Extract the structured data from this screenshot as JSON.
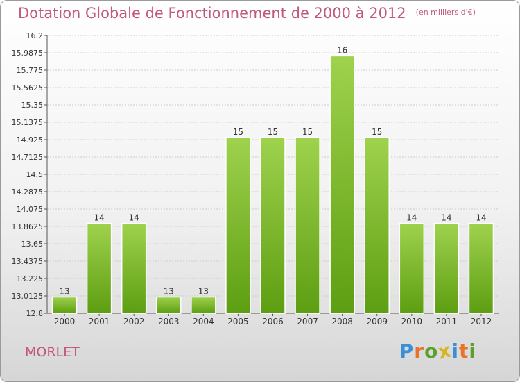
{
  "colors": {
    "title": "#c05a78",
    "bar_top": "#9fd24d",
    "bar_bottom": "#5d9e12",
    "axis_text": "#333333",
    "gridline": "#cccccc"
  },
  "header": {
    "title": "Dotation Globale de Fonctionnement de 2000 à 2012",
    "unit": "(en milliers d'€)"
  },
  "footer": {
    "commune": "MORLET",
    "brand": [
      "P",
      "r",
      "o",
      "x",
      "i",
      "t",
      "i"
    ],
    "brand_colors": [
      "#3a8fd6",
      "#e8742a",
      "#5aa02c",
      "#d9b321",
      "#3a8fd6",
      "#e8742a",
      "#5aa02c"
    ]
  },
  "chart_data": {
    "type": "bar",
    "categories": [
      "2000",
      "2001",
      "2002",
      "2003",
      "2004",
      "2005",
      "2006",
      "2007",
      "2008",
      "2009",
      "2010",
      "2011",
      "2012"
    ],
    "values": [
      13.0,
      13.9,
      13.9,
      13.0,
      13.0,
      14.95,
      14.95,
      14.95,
      15.95,
      14.95,
      13.9,
      13.9,
      13.9
    ],
    "data_labels": [
      "13",
      "14",
      "14",
      "13",
      "13",
      "15",
      "15",
      "15",
      "16",
      "15",
      "14",
      "14",
      "14"
    ],
    "yticks": [
      "12.8",
      "13.0125",
      "13.225",
      "13.4375",
      "13.65",
      "13.8625",
      "14.075",
      "14.2875",
      "14.5",
      "14.7125",
      "14.925",
      "15.1375",
      "15.35",
      "15.5625",
      "15.775",
      "15.9875",
      "16.2"
    ],
    "ylim": [
      12.8,
      16.2
    ],
    "grid": true,
    "title": "Dotation Globale de Fonctionnement de 2000 à 2012",
    "xlabel": "",
    "ylabel": ""
  }
}
